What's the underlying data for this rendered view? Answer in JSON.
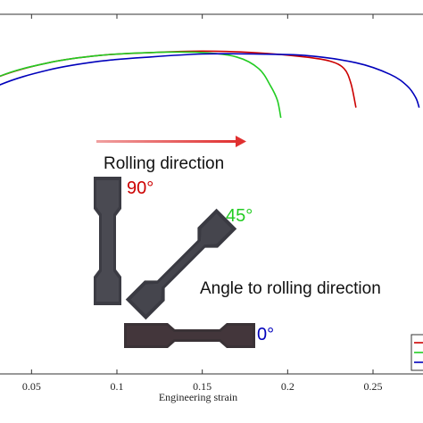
{
  "chart_data": {
    "type": "line",
    "xlabel": "Engineering strain",
    "xlim": [
      0.02,
      0.285
    ],
    "ylim": [
      0,
      1
    ],
    "x_ticks": [
      0.05,
      0.1,
      0.15,
      0.2,
      0.25
    ],
    "x_tick_labels": [
      "0.05",
      "0.1",
      "0.15",
      "0.2",
      "0.25"
    ],
    "grid": false,
    "legend_position": "bottom-right",
    "series": [
      {
        "color": "#cc0000",
        "x": [
          0.0,
          0.03,
          0.06,
          0.09,
          0.12,
          0.15,
          0.18,
          0.21,
          0.225,
          0.233,
          0.237,
          0.24
        ],
        "y": [
          0.73,
          0.82,
          0.87,
          0.895,
          0.905,
          0.91,
          0.905,
          0.89,
          0.875,
          0.85,
          0.8,
          0.715
        ]
      },
      {
        "color": "#22cc22",
        "x": [
          0.0,
          0.03,
          0.06,
          0.09,
          0.12,
          0.15,
          0.17,
          0.183,
          0.19,
          0.194,
          0.196
        ],
        "y": [
          0.72,
          0.82,
          0.87,
          0.895,
          0.905,
          0.905,
          0.89,
          0.85,
          0.79,
          0.74,
          0.68
        ]
      },
      {
        "color": "#0000bb",
        "x": [
          0.0,
          0.03,
          0.06,
          0.09,
          0.12,
          0.15,
          0.18,
          0.21,
          0.24,
          0.26,
          0.27,
          0.275,
          0.277
        ],
        "y": [
          0.69,
          0.79,
          0.845,
          0.875,
          0.89,
          0.9,
          0.9,
          0.895,
          0.87,
          0.83,
          0.79,
          0.75,
          0.715
        ]
      }
    ]
  },
  "annotations": {
    "rolling_direction": "Rolling direction",
    "angle_90": "90°",
    "angle_45": "45°",
    "angle_0": "0°",
    "angle_title": "Angle to rolling direction"
  },
  "colors": {
    "arrow": "#e03030",
    "angle_90": "#cc0000",
    "angle_45": "#22cc22",
    "angle_0": "#0000bb",
    "specimen": "#3c3c44"
  }
}
